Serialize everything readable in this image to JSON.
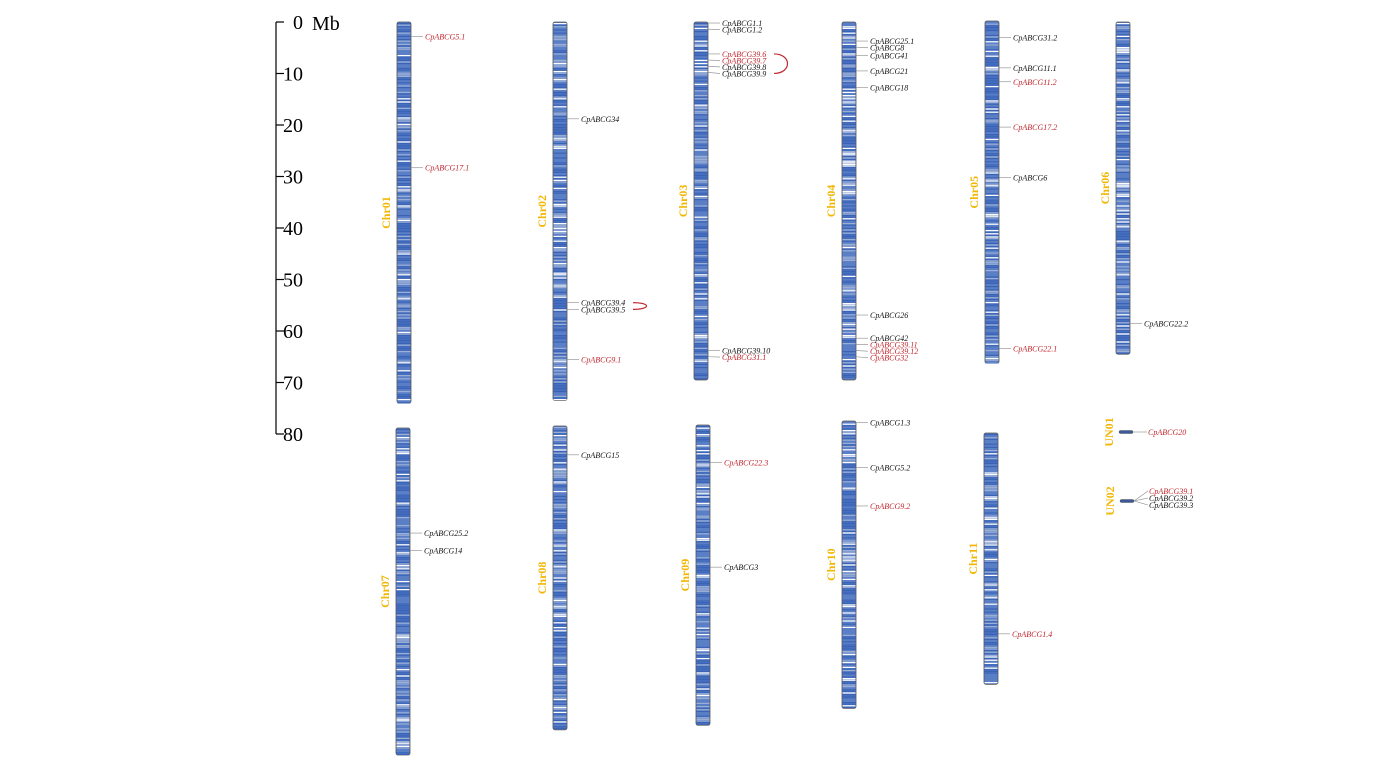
{
  "colors": {
    "chromosome_label": "#f2b705",
    "gene_black": "#111111",
    "gene_red": "#c0262d",
    "leader_line": "#888888",
    "band_dark": "#3a63b8",
    "band_light": "#9aaed6",
    "band_white": "#ffffff",
    "chrom_fill": "#5b7fc7",
    "chrom_stroke": "#555555"
  },
  "scale": {
    "unit_label": "Mb",
    "ticks": [
      0,
      10,
      20,
      30,
      40,
      50,
      60,
      70,
      80
    ]
  },
  "chromosomes": [
    {
      "name": "Chr01",
      "length_mb": 74,
      "genes": [
        {
          "name": "CpABCG5.1",
          "pos": 2.8,
          "color": "red"
        },
        {
          "name": "CpABCG17.1",
          "pos": 28.3,
          "color": "red"
        }
      ]
    },
    {
      "name": "Chr02",
      "length_mb": 73.5,
      "genes": [
        {
          "name": "CpABCG34",
          "pos": 18.8,
          "color": "black"
        },
        {
          "name": "CpABCG39.4",
          "pos": 54.5,
          "color": "black"
        },
        {
          "name": "CpABCG39.5",
          "pos": 55.8,
          "color": "black"
        },
        {
          "name": "CpABCG9.1",
          "pos": 65.5,
          "color": "red"
        }
      ],
      "links": [
        [
          "CpABCG39.4",
          "CpABCG39.5"
        ]
      ]
    },
    {
      "name": "Chr03",
      "length_mb": 69.5,
      "genes": [
        {
          "name": "CpABCG1.1",
          "pos": 0.2,
          "color": "black"
        },
        {
          "name": "CpABCG1.2",
          "pos": 1.4,
          "color": "black"
        },
        {
          "name": "CpABCG39.6",
          "pos": 6.2,
          "color": "red"
        },
        {
          "name": "CpABCG39.7",
          "pos": 7.4,
          "color": "red"
        },
        {
          "name": "CpABCG39.8",
          "pos": 8.6,
          "color": "black"
        },
        {
          "name": "CpABCG39.9",
          "pos": 9.8,
          "color": "black"
        },
        {
          "name": "CpABCG39.10",
          "pos": 63.8,
          "color": "black"
        },
        {
          "name": "CpABCG31.1",
          "pos": 65.0,
          "color": "red"
        }
      ],
      "links": [
        [
          "CpABCG39.6",
          "CpABCG39.9"
        ]
      ]
    },
    {
      "name": "Chr04",
      "length_mb": 69.5,
      "genes": [
        {
          "name": "CpABCG25.1",
          "pos": 3.7,
          "color": "black"
        },
        {
          "name": "CpABCG8",
          "pos": 4.9,
          "color": "black"
        },
        {
          "name": "CpABCG41",
          "pos": 6.5,
          "color": "black"
        },
        {
          "name": "CpABCG21",
          "pos": 9.5,
          "color": "black"
        },
        {
          "name": "CpABCG18",
          "pos": 12.7,
          "color": "black"
        },
        {
          "name": "CpABCG26",
          "pos": 56.9,
          "color": "black"
        },
        {
          "name": "CpABCG42",
          "pos": 61.4,
          "color": "black"
        },
        {
          "name": "CpABCG39.11",
          "pos": 62.6,
          "color": "red"
        },
        {
          "name": "CpABCG39.12",
          "pos": 63.8,
          "color": "red"
        },
        {
          "name": "CpABCG32",
          "pos": 65.0,
          "color": "red"
        }
      ]
    },
    {
      "name": "Chr05",
      "length_mb": 66.5,
      "genes": [
        {
          "name": "CpABCG31.2",
          "pos": 3.2,
          "color": "black"
        },
        {
          "name": "CpABCG11.1",
          "pos": 9.1,
          "color": "black"
        },
        {
          "name": "CpABCG11.2",
          "pos": 11.8,
          "color": "red"
        },
        {
          "name": "CpABCG17.2",
          "pos": 20.6,
          "color": "red"
        },
        {
          "name": "CpABCG6",
          "pos": 30.4,
          "color": "black"
        },
        {
          "name": "CpABCG22.1",
          "pos": 63.6,
          "color": "red"
        }
      ]
    },
    {
      "name": "Chr06",
      "length_mb": 64.5,
      "genes": [
        {
          "name": "CpABCG22.2",
          "pos": 58.5,
          "color": "black"
        }
      ]
    },
    {
      "name": "Chr07",
      "length_mb": 63.5,
      "genes": [
        {
          "name": "CpABCG25.2",
          "pos": 20.4,
          "color": "black"
        },
        {
          "name": "CpABCG14",
          "pos": 23.8,
          "color": "black"
        }
      ]
    },
    {
      "name": "Chr08",
      "length_mb": 59.0,
      "genes": [
        {
          "name": "CpABCG15",
          "pos": 5.6,
          "color": "black"
        }
      ]
    },
    {
      "name": "Chr09",
      "length_mb": 58.3,
      "genes": [
        {
          "name": "CpABCG22.3",
          "pos": 7.3,
          "color": "red"
        },
        {
          "name": "CpABCG3",
          "pos": 27.6,
          "color": "black"
        }
      ]
    },
    {
      "name": "Chr10",
      "length_mb": 55.8,
      "genes": [
        {
          "name": "CpABCG1.3",
          "pos": 0.3,
          "color": "black"
        },
        {
          "name": "CpABCG5.2",
          "pos": 9.0,
          "color": "black"
        },
        {
          "name": "CpABCG9.2",
          "pos": 16.5,
          "color": "red"
        }
      ]
    },
    {
      "name": "Chr11",
      "length_mb": 48.8,
      "genes": [
        {
          "name": "CpABCG1.4",
          "pos": 39.0,
          "color": "red"
        }
      ]
    },
    {
      "name": "UN01",
      "length_mb": 0.5,
      "genes": [
        {
          "name": "CpABCG20",
          "pos": 0.3,
          "color": "red"
        }
      ]
    },
    {
      "name": "UN02",
      "length_mb": 0.5,
      "genes": [
        {
          "name": "CpABCG39.1",
          "pos": 0.1,
          "color": "red"
        },
        {
          "name": "CpABCG39.2",
          "pos": 0.25,
          "color": "black"
        },
        {
          "name": "CpABCG39.3",
          "pos": 0.4,
          "color": "black"
        }
      ]
    }
  ]
}
